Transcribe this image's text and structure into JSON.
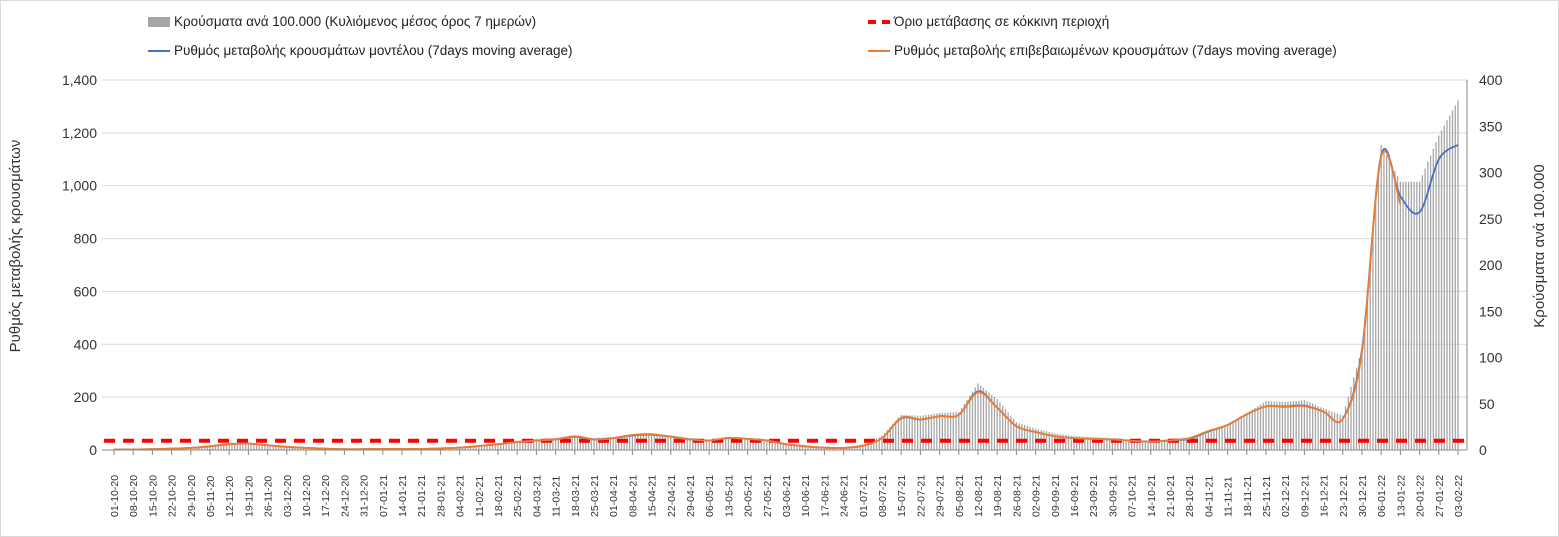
{
  "chart_data": {
    "type": "bar+line",
    "legend": [
      {
        "label": "Κρούσματα ανά 100.000 (Κυλιόμενος μέσος όρος 7 ημερών)",
        "color": "#a6a6a6",
        "kind": "bar"
      },
      {
        "label": "Όριο μετάβασης σε κόκκινη περιοχή",
        "color": "#ff0000",
        "kind": "dashed"
      },
      {
        "label": "Ρυθμός μεταβολής κρουσμάτων μοντέλου (7days moving average)",
        "color": "#4472c4",
        "kind": "line"
      },
      {
        "label": "Ρυθμός μεταβολής επιβεβαιωμένων κρουσμάτων (7days moving average)",
        "color": "#ed7d31",
        "kind": "line"
      }
    ],
    "ylabel_left": "Ρυθμός μεταβολής κρουσμάτων",
    "ylabel_right": "Κρούσματα ανά 100.000",
    "ylim_left": [
      0,
      1400
    ],
    "yticks_left": [
      "0",
      "200",
      "400",
      "600",
      "800",
      "1,000",
      "1,200",
      "1,400"
    ],
    "ylim_right": [
      0,
      400
    ],
    "yticks_right": [
      "0",
      "50",
      "100",
      "150",
      "200",
      "250",
      "300",
      "350",
      "400"
    ],
    "threshold": 10,
    "x": [
      "01-10-20",
      "08-10-20",
      "15-10-20",
      "22-10-20",
      "29-10-20",
      "05-11-20",
      "12-11-20",
      "19-11-20",
      "26-11-20",
      "03-12-20",
      "10-12-20",
      "17-12-20",
      "24-12-20",
      "31-12-20",
      "07-01-21",
      "14-01-21",
      "21-01-21",
      "28-01-21",
      "04-02-21",
      "11-02-21",
      "18-02-21",
      "25-02-21",
      "04-03-21",
      "11-03-21",
      "18-03-21",
      "25-03-21",
      "01-04-21",
      "08-04-21",
      "15-04-21",
      "22-04-21",
      "29-04-21",
      "06-05-21",
      "13-05-21",
      "20-05-21",
      "27-05-21",
      "03-06-21",
      "10-06-21",
      "17-06-21",
      "24-06-21",
      "01-07-21",
      "08-07-21",
      "15-07-21",
      "22-07-21",
      "29-07-21",
      "05-08-21",
      "12-08-21",
      "19-08-21",
      "26-08-21",
      "02-09-21",
      "09-09-21",
      "16-09-21",
      "23-09-21",
      "30-09-21",
      "07-10-21",
      "14-10-21",
      "21-10-21",
      "28-10-21",
      "04-11-21",
      "11-11-21",
      "18-11-21",
      "25-11-21",
      "02-12-21",
      "09-12-21",
      "16-12-21",
      "23-12-21",
      "30-12-21",
      "06-01-22",
      "13-01-22",
      "20-01-22",
      "27-01-22",
      "03-02-22"
    ],
    "bars": [
      1,
      1,
      1.5,
      2,
      3,
      5,
      8,
      8,
      6,
      4,
      3,
      2,
      1,
      1,
      1.5,
      1.5,
      1.5,
      2,
      3,
      5,
      7,
      10,
      12,
      13,
      16,
      13,
      14,
      17,
      18,
      16,
      13,
      11,
      14,
      13,
      11,
      7,
      5,
      3,
      3,
      6,
      15,
      38,
      37,
      40,
      41,
      72,
      55,
      30,
      23,
      18,
      15,
      14,
      13,
      11,
      10,
      12,
      14,
      21,
      28,
      40,
      53,
      52,
      54,
      45,
      37,
      110,
      330,
      290,
      290,
      340,
      378
    ],
    "model": [
      2,
      2,
      3,
      5,
      8,
      14,
      22,
      24,
      18,
      12,
      8,
      5,
      3,
      3,
      4,
      4,
      4,
      6,
      9,
      15,
      22,
      30,
      36,
      40,
      50,
      40,
      45,
      55,
      58,
      50,
      40,
      36,
      45,
      42,
      36,
      22,
      14,
      9,
      8,
      16,
      45,
      120,
      115,
      128,
      133,
      222,
      160,
      90,
      68,
      52,
      45,
      42,
      40,
      35,
      32,
      36,
      42,
      70,
      95,
      135,
      165,
      165,
      168,
      145,
      118,
      380,
      1115,
      960,
      900,
      1100,
      1155
    ],
    "confirmed": [
      2,
      2,
      3,
      5,
      8,
      14,
      22,
      24,
      18,
      12,
      8,
      5,
      3,
      3,
      4,
      4,
      4,
      6,
      9,
      15,
      22,
      30,
      36,
      40,
      52,
      40,
      45,
      57,
      60,
      50,
      40,
      36,
      46,
      42,
      36,
      22,
      14,
      9,
      8,
      16,
      45,
      122,
      116,
      128,
      133,
      218,
      160,
      90,
      68,
      52,
      45,
      42,
      40,
      35,
      32,
      36,
      44,
      72,
      95,
      135,
      165,
      163,
      166,
      145,
      118,
      370,
      1110,
      930,
      null,
      null,
      null
    ]
  }
}
